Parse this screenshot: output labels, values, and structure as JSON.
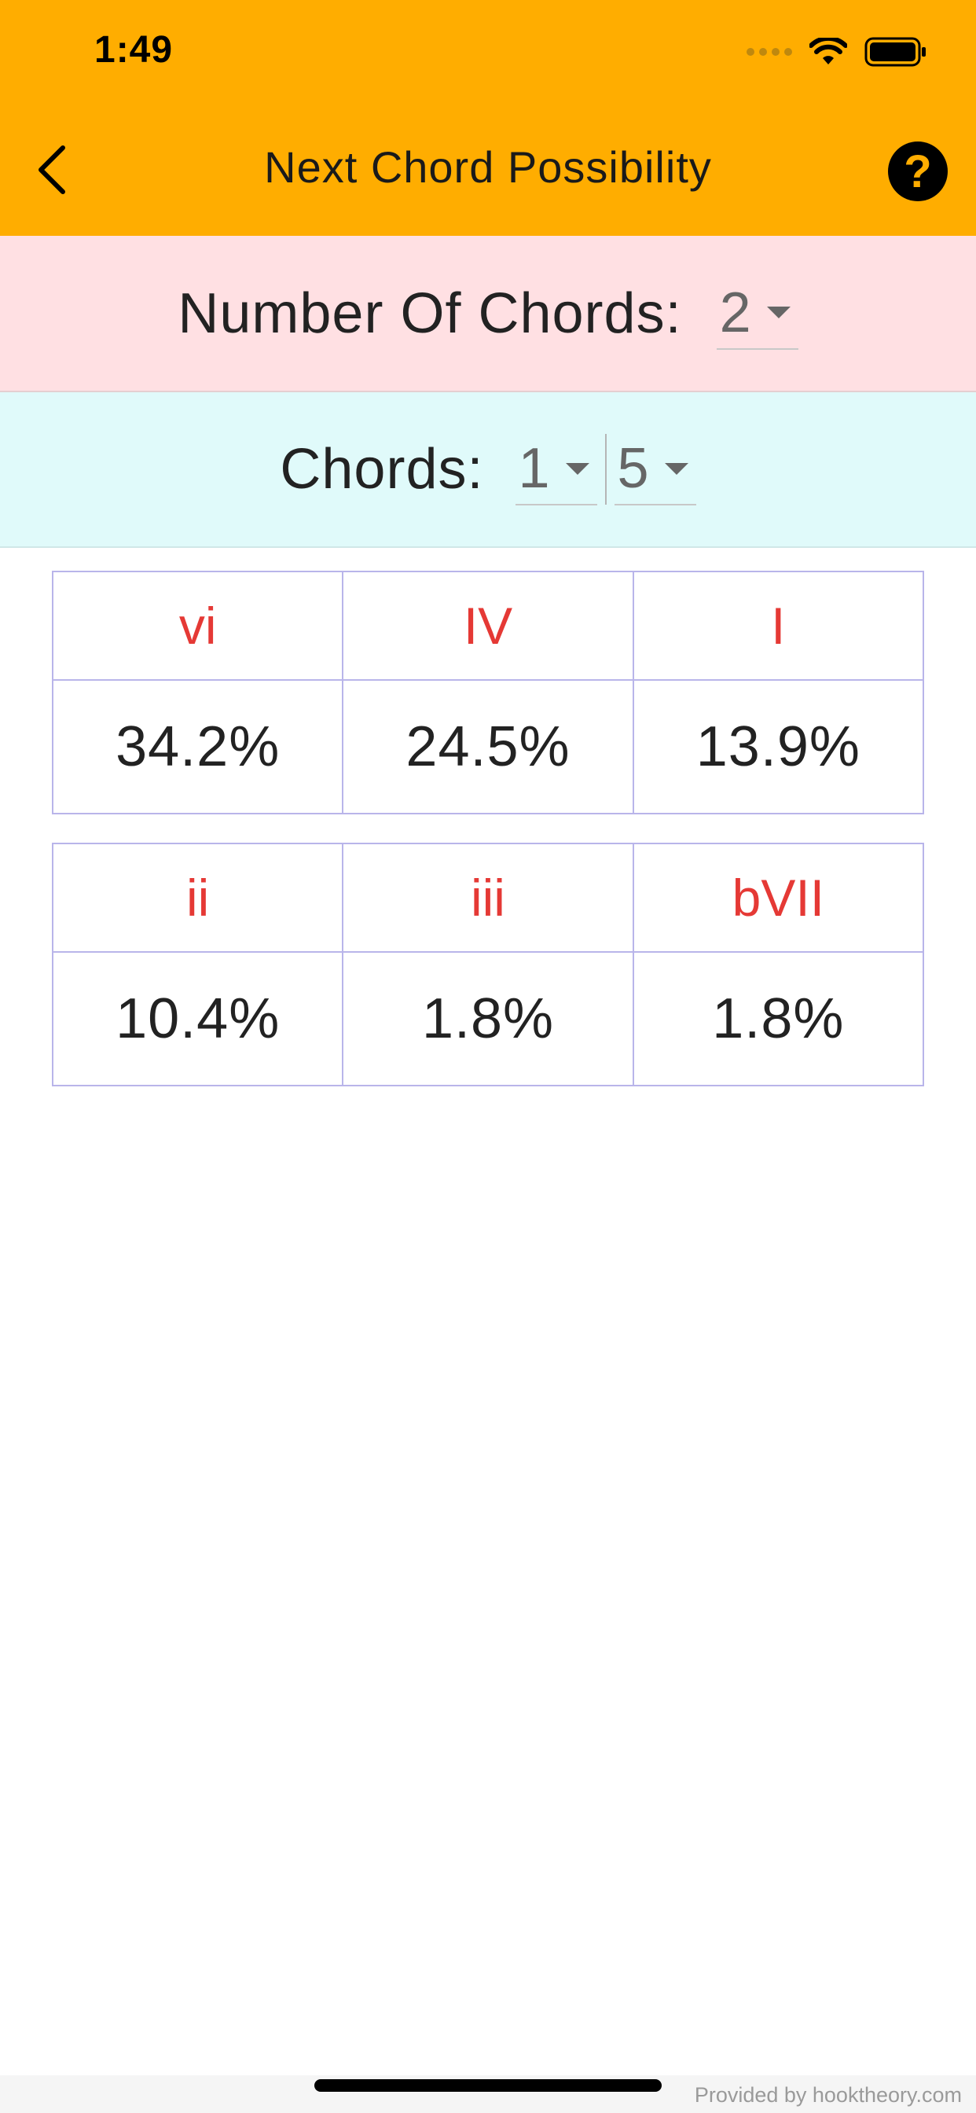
{
  "status_bar": {
    "time": "1:49"
  },
  "header": {
    "title": "Next Chord Possibility",
    "help_label": "?",
    "background_color": "#FFAD00"
  },
  "count_selector": {
    "label": "Number Of Chords:",
    "value": "2"
  },
  "chords_selector": {
    "label": "Chords:",
    "chords": [
      "1",
      "5"
    ]
  },
  "tables": [
    {
      "chords": [
        "vi",
        "IV",
        "I"
      ],
      "percentages": [
        "34.2%",
        "24.5%",
        "13.9%"
      ]
    },
    {
      "chords": [
        "ii",
        "iii",
        "bVII"
      ],
      "percentages": [
        "10.4%",
        "1.8%",
        "1.8%"
      ]
    }
  ],
  "footer": {
    "provided_by": "Provided by hooktheory.com"
  },
  "colors": {
    "chord_text": "#E53935",
    "count_band": "#FFE0E3",
    "chords_band": "#E0FAFA",
    "table_border": "#B9B5EA"
  }
}
